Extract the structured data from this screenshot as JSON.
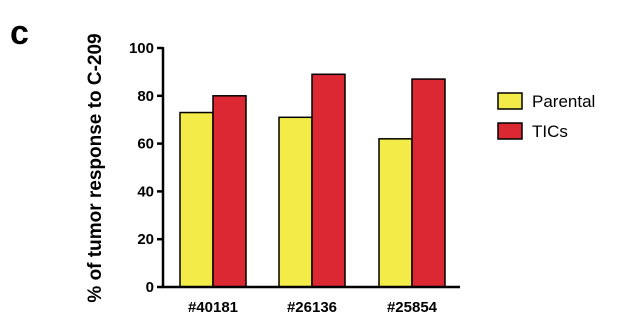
{
  "panel_label": "c",
  "chart_data": {
    "type": "bar",
    "title": "",
    "xlabel": "",
    "ylabel": "% of tumor response to C-209",
    "ylim": [
      0,
      100
    ],
    "yticks": [
      "0",
      "20",
      "40",
      "60",
      "80",
      "100"
    ],
    "categories": [
      "#40181",
      "#26136",
      "#25854"
    ],
    "series": [
      {
        "name": "Parental",
        "color": "#f2eb48",
        "values": [
          73,
          71,
          62
        ]
      },
      {
        "name": "TICs",
        "color": "#dc2833",
        "values": [
          80,
          89,
          87
        ]
      }
    ],
    "grid": false,
    "legend": "right"
  }
}
